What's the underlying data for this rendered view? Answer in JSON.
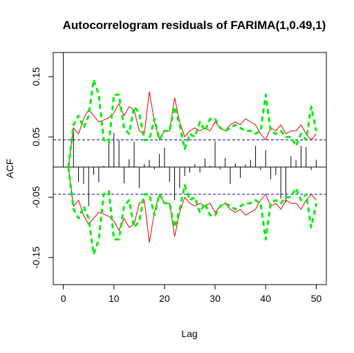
{
  "chart_data": {
    "type": "line",
    "title": "Autocorrelogram residuals of FARIMA(1,0.49,1)",
    "xlabel": "Lag",
    "ylabel": "ACF",
    "xlim": [
      -2,
      52
    ],
    "ylim": [
      -0.195,
      0.19
    ],
    "x_ticks": [
      0,
      10,
      20,
      30,
      40,
      50
    ],
    "y_ticks": [
      -0.15,
      -0.05,
      0.05,
      0.15
    ],
    "conf_limit": 0.045,
    "grid": false,
    "legend": "none",
    "colors": {
      "bars": "#000000",
      "conf": "#0000cc",
      "red": "#dd0000",
      "green": "#00ee00",
      "zero": "#000000"
    },
    "acf": {
      "lags": [
        0,
        1,
        2,
        3,
        4,
        5,
        6,
        7,
        8,
        9,
        10,
        11,
        12,
        13,
        14,
        15,
        16,
        17,
        18,
        19,
        20,
        21,
        22,
        23,
        24,
        25,
        26,
        27,
        28,
        29,
        30,
        31,
        32,
        33,
        34,
        35,
        36,
        37,
        38,
        39,
        40,
        41,
        42,
        43,
        44,
        45,
        46,
        47,
        48,
        49,
        50
      ],
      "values": [
        1.0,
        0.002,
        0.065,
        -0.025,
        -0.028,
        -0.065,
        -0.013,
        -0.025,
        0.002,
        0.04,
        0.057,
        0.045,
        -0.027,
        0.013,
        0.042,
        -0.035,
        0.005,
        0.012,
        -0.004,
        0.022,
        0.032,
        -0.025,
        -0.055,
        -0.035,
        -0.015,
        -0.009,
        0.005,
        -0.009,
        0.014,
        0.002,
        0.043,
        -0.004,
        0.015,
        -0.028,
        0.006,
        -0.018,
        0.004,
        0.012,
        0.035,
        -0.005,
        0.028,
        -0.02,
        -0.013,
        -0.052,
        -0.058,
        0.018,
        0.012,
        0.035,
        0.033,
        -0.005,
        0.012
      ]
    },
    "series": [
      {
        "x": [
          1,
          2,
          3,
          4,
          5,
          6,
          7,
          8,
          9,
          10,
          11,
          12,
          13,
          14,
          15,
          16,
          17,
          18,
          19,
          20,
          21,
          22,
          23,
          24,
          25,
          26,
          27,
          28,
          29,
          30,
          31,
          32,
          33,
          34,
          35,
          36,
          37,
          38,
          39,
          40,
          41,
          42,
          43,
          44,
          45,
          46,
          47,
          48,
          49,
          50
        ],
        "upper": [
          0.0,
          0.065,
          0.055,
          0.08,
          0.095,
          0.085,
          0.075,
          0.078,
          0.082,
          0.09,
          0.105,
          0.085,
          0.1,
          0.095,
          0.06,
          0.055,
          0.125,
          0.075,
          0.045,
          0.06,
          0.06,
          0.115,
          0.075,
          0.05,
          0.06,
          0.065,
          0.06,
          0.065,
          0.06,
          0.075,
          0.065,
          0.06,
          0.07,
          0.075,
          0.07,
          0.08,
          0.075,
          0.07,
          0.055,
          0.045,
          0.065,
          0.06,
          0.07,
          0.055,
          0.06,
          0.06,
          0.07,
          0.055,
          0.045,
          0.055
        ],
        "lower": [
          0.0,
          -0.065,
          -0.055,
          -0.08,
          -0.095,
          -0.085,
          -0.075,
          -0.078,
          -0.082,
          -0.09,
          -0.105,
          -0.085,
          -0.1,
          -0.095,
          -0.06,
          -0.055,
          -0.125,
          -0.075,
          -0.045,
          -0.06,
          -0.06,
          -0.115,
          -0.075,
          -0.05,
          -0.06,
          -0.065,
          -0.06,
          -0.065,
          -0.06,
          -0.075,
          -0.065,
          -0.06,
          -0.07,
          -0.075,
          -0.07,
          -0.08,
          -0.075,
          -0.07,
          -0.055,
          -0.045,
          -0.065,
          -0.06,
          -0.07,
          -0.055,
          -0.06,
          -0.06,
          -0.07,
          -0.055,
          -0.045,
          -0.055
        ]
      },
      {
        "x": [
          1,
          2,
          3,
          4,
          5,
          6,
          7,
          8,
          9,
          10,
          11,
          12,
          13,
          14,
          15,
          16,
          17,
          18,
          19,
          20,
          21,
          22,
          23,
          24,
          25,
          26,
          27,
          28,
          29,
          30,
          31,
          32,
          33,
          34,
          35,
          36,
          37,
          38,
          39,
          40,
          41,
          42,
          43,
          44,
          45,
          46,
          47,
          48,
          49,
          50
        ],
        "upper": [
          0.0,
          0.07,
          0.085,
          0.065,
          0.085,
          0.145,
          0.12,
          0.045,
          0.04,
          0.12,
          0.12,
          0.065,
          0.055,
          0.1,
          0.09,
          0.045,
          0.045,
          0.08,
          0.045,
          0.06,
          0.06,
          0.1,
          0.07,
          0.03,
          0.055,
          0.05,
          0.075,
          0.06,
          0.08,
          0.08,
          0.065,
          0.06,
          0.065,
          0.07,
          0.065,
          0.06,
          0.06,
          0.055,
          0.06,
          0.12,
          0.06,
          0.055,
          0.06,
          0.05,
          0.05,
          0.035,
          0.055,
          0.045,
          0.1,
          0.06
        ],
        "lower": [
          0.0,
          -0.07,
          -0.085,
          -0.065,
          -0.085,
          -0.145,
          -0.12,
          -0.045,
          -0.04,
          -0.12,
          -0.12,
          -0.065,
          -0.055,
          -0.1,
          -0.09,
          -0.045,
          -0.045,
          -0.08,
          -0.045,
          -0.06,
          -0.06,
          -0.1,
          -0.07,
          -0.03,
          -0.055,
          -0.05,
          -0.075,
          -0.06,
          -0.08,
          -0.08,
          -0.065,
          -0.06,
          -0.065,
          -0.07,
          -0.065,
          -0.06,
          -0.06,
          -0.055,
          -0.06,
          -0.12,
          -0.06,
          -0.055,
          -0.06,
          -0.05,
          -0.05,
          -0.035,
          -0.055,
          -0.045,
          -0.1,
          -0.06
        ]
      }
    ]
  }
}
